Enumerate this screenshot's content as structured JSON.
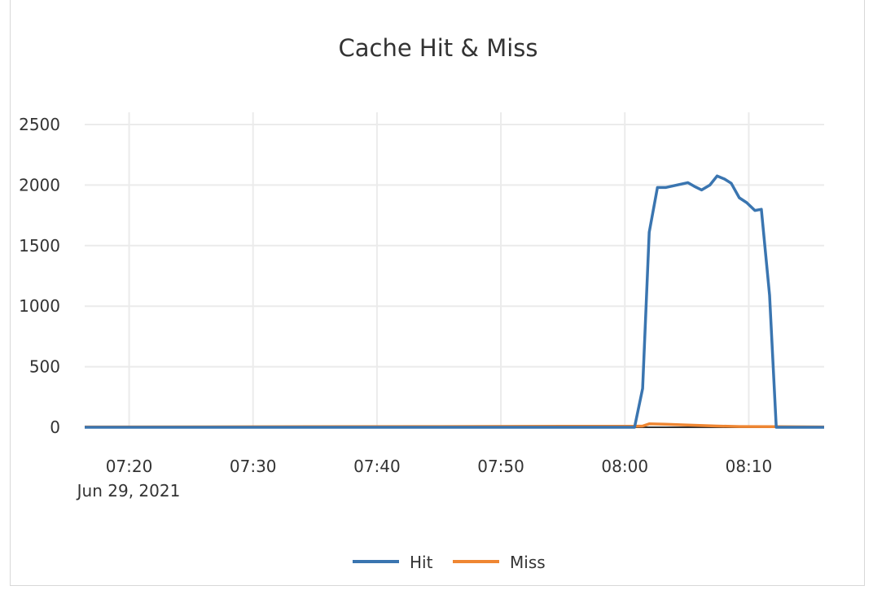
{
  "chart_data": {
    "type": "line",
    "title": "Cache Hit & Miss",
    "xlabel": "",
    "ylabel": "",
    "x_range": [
      "07:16:25",
      "08:16:05"
    ],
    "ylim": [
      0,
      2500
    ],
    "y_ticks": [
      "0",
      "500",
      "1000",
      "1500",
      "2000",
      "2500"
    ],
    "x_ticks": [
      {
        "time": "07:20",
        "label": "07:20"
      },
      {
        "time": "07:30",
        "label": "07:30"
      },
      {
        "time": "07:40",
        "label": "07:40"
      },
      {
        "time": "07:50",
        "label": "07:50"
      },
      {
        "time": "08:00",
        "label": "08:00"
      },
      {
        "time": "08:10",
        "label": "08:10"
      }
    ],
    "date_label": "Jun 29, 2021",
    "grid": true,
    "legend_position": "bottom",
    "series": [
      {
        "name": "Hit",
        "color": "#3a75b0",
        "points": [
          [
            "07:16:25",
            0
          ],
          [
            "08:00:47",
            0
          ],
          [
            "08:01:26",
            320
          ],
          [
            "08:01:58",
            1610
          ],
          [
            "08:02:38",
            1980
          ],
          [
            "08:03:17",
            1980
          ],
          [
            "08:05:05",
            2020
          ],
          [
            "08:05:36",
            1990
          ],
          [
            "08:06:12",
            1960
          ],
          [
            "08:06:52",
            2000
          ],
          [
            "08:07:27",
            2075
          ],
          [
            "08:08:03",
            2050
          ],
          [
            "08:08:35",
            2015
          ],
          [
            "08:09:14",
            1895
          ],
          [
            "08:09:50",
            1855
          ],
          [
            "08:10:30",
            1790
          ],
          [
            "08:11:01",
            1800
          ],
          [
            "08:11:41",
            1090
          ],
          [
            "08:12:13",
            0
          ],
          [
            "08:16:05",
            0
          ]
        ]
      },
      {
        "name": "Miss",
        "color": "#ef8632",
        "points": [
          [
            "07:16:25",
            3
          ],
          [
            "07:30:00",
            4
          ],
          [
            "07:45:00",
            6
          ],
          [
            "07:55:00",
            8
          ],
          [
            "08:00:47",
            8
          ],
          [
            "08:01:26",
            10
          ],
          [
            "08:01:58",
            28
          ],
          [
            "08:03:17",
            25
          ],
          [
            "08:05:05",
            18
          ],
          [
            "08:07:27",
            10
          ],
          [
            "08:09:14",
            6
          ],
          [
            "08:12:13",
            5
          ],
          [
            "08:16:05",
            3
          ]
        ]
      }
    ]
  }
}
